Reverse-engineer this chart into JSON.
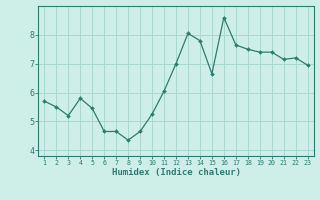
{
  "x": [
    1,
    2,
    3,
    4,
    5,
    6,
    7,
    8,
    9,
    10,
    11,
    12,
    13,
    14,
    15,
    16,
    17,
    18,
    19,
    20,
    21,
    22,
    23
  ],
  "y": [
    5.7,
    5.5,
    5.2,
    5.8,
    5.45,
    4.65,
    4.65,
    4.35,
    4.65,
    5.25,
    6.05,
    7.0,
    8.05,
    7.8,
    6.65,
    8.6,
    7.65,
    7.5,
    7.4,
    7.4,
    7.15,
    7.2,
    6.95
  ],
  "line_color": "#2e7d6e",
  "marker": "D",
  "marker_size": 2.0,
  "bg_color": "#ceeee8",
  "grid_color": "#a8d8d0",
  "xlabel": "Humidex (Indice chaleur)",
  "ylim": [
    3.8,
    9.0
  ],
  "xlim": [
    0.5,
    23.5
  ],
  "yticks": [
    4,
    5,
    6,
    7,
    8
  ],
  "xticks": [
    1,
    2,
    3,
    4,
    5,
    6,
    7,
    8,
    9,
    10,
    11,
    12,
    13,
    14,
    15,
    16,
    17,
    18,
    19,
    20,
    21,
    22,
    23
  ],
  "tick_color": "#2e7d6e",
  "label_color": "#2e7d6e",
  "axis_color": "#2e7d6e",
  "xfontsize": 4.8,
  "yfontsize": 6.0,
  "xlabel_fontsize": 6.5
}
